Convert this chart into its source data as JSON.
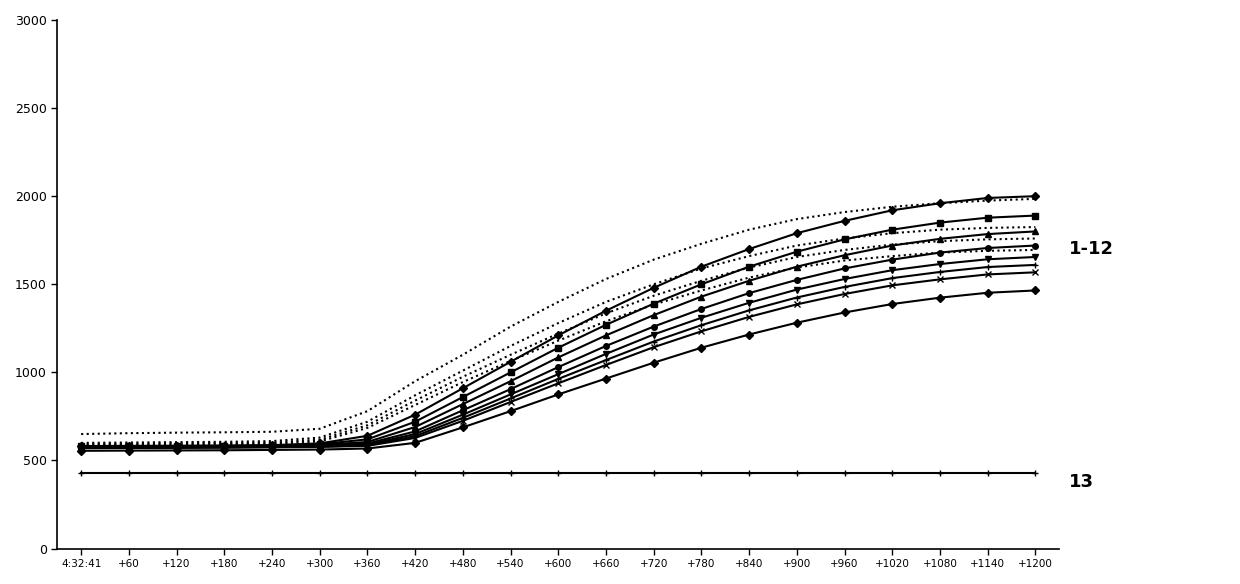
{
  "x_labels": [
    "4:32:41",
    "+60",
    "+120",
    "+180",
    "+240",
    "+300",
    "+360",
    "+420",
    "+480",
    "+540",
    "+600",
    "+660",
    "+720",
    "+780",
    "+840",
    "+900",
    "+960",
    "+1020",
    "+1080",
    "+1140",
    "+1200"
  ],
  "ylim": [
    0,
    3000
  ],
  "yticks": [
    0,
    500,
    1000,
    1500,
    2000,
    2500,
    3000
  ],
  "label_12": "1-12",
  "label_13": "13",
  "series": [
    {
      "name": "s1_dotted_high",
      "style": "dotted",
      "marker": "none",
      "values": [
        650,
        655,
        658,
        660,
        663,
        680,
        780,
        950,
        1100,
        1260,
        1400,
        1530,
        1640,
        1730,
        1810,
        1870,
        1910,
        1940,
        1960,
        1975,
        1985
      ]
    },
    {
      "name": "s2_dotted",
      "style": "dotted",
      "marker": "none",
      "values": [
        600,
        602,
        604,
        606,
        610,
        630,
        720,
        870,
        1010,
        1150,
        1280,
        1400,
        1500,
        1590,
        1660,
        1720,
        1760,
        1790,
        1810,
        1820,
        1825
      ]
    },
    {
      "name": "s3_dotted",
      "style": "dotted",
      "marker": "none",
      "values": [
        592,
        594,
        596,
        598,
        601,
        618,
        700,
        840,
        975,
        1100,
        1220,
        1335,
        1435,
        1520,
        1595,
        1655,
        1695,
        1725,
        1745,
        1755,
        1760
      ]
    },
    {
      "name": "s4_dotted",
      "style": "dotted",
      "marker": "none",
      "values": [
        586,
        588,
        590,
        592,
        595,
        608,
        685,
        815,
        945,
        1065,
        1180,
        1290,
        1385,
        1465,
        1538,
        1595,
        1635,
        1660,
        1680,
        1690,
        1695
      ]
    },
    {
      "name": "s5_solid_top",
      "style": "solid",
      "marker": "D",
      "values": [
        582,
        583,
        584,
        585,
        587,
        597,
        640,
        760,
        910,
        1060,
        1210,
        1350,
        1480,
        1600,
        1700,
        1790,
        1860,
        1920,
        1960,
        1990,
        2000
      ]
    },
    {
      "name": "s6_solid",
      "style": "solid",
      "marker": "s",
      "values": [
        580,
        581,
        582,
        583,
        585,
        592,
        620,
        720,
        860,
        1000,
        1140,
        1270,
        1390,
        1500,
        1600,
        1685,
        1755,
        1810,
        1850,
        1878,
        1890
      ]
    },
    {
      "name": "s7_solid",
      "style": "solid",
      "marker": "^",
      "values": [
        578,
        579,
        580,
        581,
        583,
        588,
        605,
        690,
        820,
        950,
        1085,
        1210,
        1325,
        1430,
        1520,
        1600,
        1665,
        1720,
        1758,
        1785,
        1800
      ]
    },
    {
      "name": "s8_solid",
      "style": "solid",
      "marker": "o",
      "values": [
        575,
        576,
        577,
        578,
        580,
        584,
        596,
        665,
        785,
        905,
        1030,
        1150,
        1260,
        1360,
        1450,
        1525,
        1590,
        1640,
        1680,
        1706,
        1720
      ]
    },
    {
      "name": "s9_solid",
      "style": "solid",
      "marker": "v",
      "values": [
        573,
        574,
        575,
        576,
        578,
        581,
        590,
        650,
        760,
        875,
        990,
        1105,
        1215,
        1310,
        1395,
        1470,
        1530,
        1580,
        1615,
        1642,
        1655
      ]
    },
    {
      "name": "s10_solid",
      "style": "solid",
      "marker": "+",
      "values": [
        572,
        572,
        573,
        574,
        576,
        579,
        586,
        638,
        742,
        852,
        963,
        1070,
        1175,
        1268,
        1352,
        1425,
        1485,
        1535,
        1570,
        1598,
        1610
      ]
    },
    {
      "name": "s11_solid",
      "style": "solid",
      "marker": "x",
      "values": [
        570,
        571,
        572,
        573,
        575,
        577,
        583,
        628,
        725,
        832,
        938,
        1042,
        1143,
        1233,
        1315,
        1386,
        1445,
        1494,
        1528,
        1556,
        1568
      ]
    },
    {
      "name": "s12_solid_low",
      "style": "solid",
      "marker": "D",
      "values": [
        555,
        556,
        557,
        558,
        560,
        562,
        568,
        600,
        688,
        780,
        875,
        965,
        1055,
        1140,
        1215,
        1282,
        1340,
        1388,
        1424,
        1452,
        1465
      ]
    },
    {
      "name": "s13_flat",
      "style": "solid",
      "marker": "+",
      "values": [
        430,
        430,
        430,
        430,
        430,
        430,
        430,
        430,
        430,
        430,
        430,
        430,
        430,
        430,
        430,
        430,
        430,
        430,
        430,
        430,
        430
      ]
    }
  ]
}
